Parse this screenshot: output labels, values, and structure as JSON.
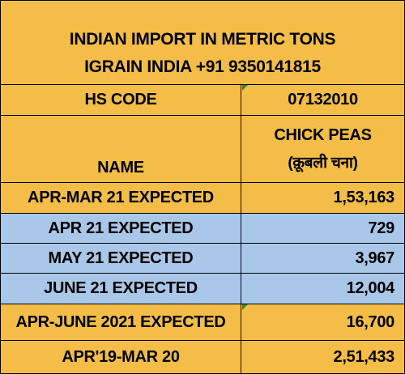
{
  "title": {
    "line1": "INDIAN IMPORT IN METRIC TONS",
    "line2": "IGRAIN INDIA +91 9350141815"
  },
  "hs_code": {
    "label": "HS CODE",
    "value": "07132010"
  },
  "name": {
    "label": "NAME",
    "value_line1": "CHICK PEAS",
    "value_line2": "(क़ूबली चना)"
  },
  "rows": [
    {
      "label": "APR-MAR 21 EXPECTED",
      "value": "1,53,163",
      "color": "#f4bd48"
    },
    {
      "label": "APR 21 EXPECTED",
      "value": "729",
      "color": "#a9c7e8"
    },
    {
      "label": "MAY 21 EXPECTED",
      "value": "3,967",
      "color": "#a9c7e8"
    },
    {
      "label": "JUNE 21 EXPECTED",
      "value": "12,004",
      "color": "#a9c7e8"
    },
    {
      "label": "APR-JUNE 2021 EXPECTED",
      "value": "16,700",
      "color": "#f4bd48"
    },
    {
      "label": "APR'19-MAR 20",
      "value": "2,51,433",
      "color": "#f4bd48"
    }
  ]
}
